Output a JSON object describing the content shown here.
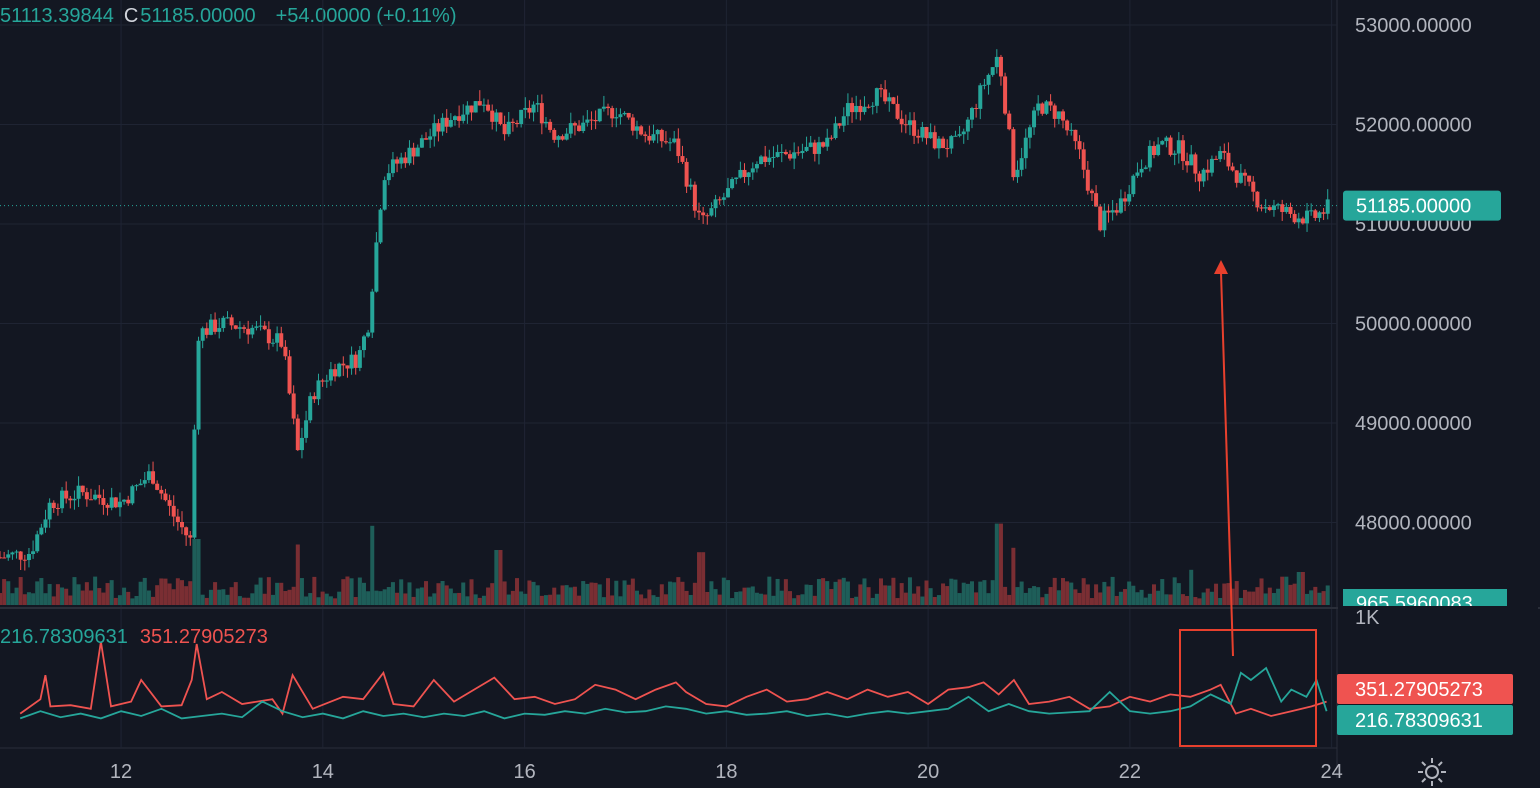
{
  "header": {
    "open_partial": "51113.39844",
    "close_prefix": "C",
    "close": "51185.00000",
    "change": "+54.00000 (+0.11%)"
  },
  "colors": {
    "background": "#131722",
    "up": "#26a69a",
    "down": "#ef5350",
    "grid": "#1f2433",
    "annotation": "#e8402d"
  },
  "chart_data": [
    {
      "type": "candlestick",
      "x_ticks": [
        "12",
        "14",
        "16",
        "18",
        "20",
        "22",
        "24"
      ],
      "y_ticks": [
        "53000.00000",
        "52000.00000",
        "51000.00000",
        "50000.00000",
        "49000.00000",
        "48000.00000"
      ],
      "ylim": [
        47200,
        53250
      ],
      "xlim": [
        10.8,
        24.4
      ],
      "last_price": "51185.00000",
      "price_path": [
        [
          10.8,
          47650
        ],
        [
          11.1,
          47700
        ],
        [
          11.3,
          48200
        ],
        [
          11.6,
          48300
        ],
        [
          12.0,
          48200
        ],
        [
          12.3,
          48500
        ],
        [
          12.5,
          48100
        ],
        [
          12.7,
          47800
        ],
        [
          12.75,
          49900
        ],
        [
          13.0,
          50000
        ],
        [
          13.3,
          49950
        ],
        [
          13.6,
          49800
        ],
        [
          13.75,
          48700
        ],
        [
          13.9,
          49300
        ],
        [
          14.1,
          49550
        ],
        [
          14.35,
          49650
        ],
        [
          14.45,
          50000
        ],
        [
          14.6,
          51500
        ],
        [
          14.9,
          51750
        ],
        [
          15.3,
          52100
        ],
        [
          15.6,
          52250
        ],
        [
          15.8,
          51900
        ],
        [
          16.1,
          52200
        ],
        [
          16.3,
          51900
        ],
        [
          16.6,
          52000
        ],
        [
          16.9,
          52150
        ],
        [
          17.2,
          51900
        ],
        [
          17.5,
          51800
        ],
        [
          17.75,
          51000
        ],
        [
          18.0,
          51300
        ],
        [
          18.3,
          51650
        ],
        [
          18.6,
          51700
        ],
        [
          19.0,
          51800
        ],
        [
          19.2,
          52150
        ],
        [
          19.5,
          52300
        ],
        [
          19.8,
          52000
        ],
        [
          20.1,
          51800
        ],
        [
          20.3,
          51800
        ],
        [
          20.55,
          52400
        ],
        [
          20.7,
          52700
        ],
        [
          20.85,
          51500
        ],
        [
          21.1,
          52200
        ],
        [
          21.3,
          52100
        ],
        [
          21.5,
          51700
        ],
        [
          21.7,
          51000
        ],
        [
          21.9,
          51200
        ],
        [
          22.1,
          51600
        ],
        [
          22.3,
          51800
        ],
        [
          22.5,
          51750
        ],
        [
          22.7,
          51500
        ],
        [
          22.9,
          51700
        ],
        [
          23.1,
          51450
        ],
        [
          23.3,
          51200
        ],
        [
          23.6,
          51100
        ],
        [
          23.8,
          51050
        ],
        [
          24.0,
          51185
        ]
      ],
      "candles": "intraday OHLC candles following price_path"
    },
    {
      "type": "bar",
      "name": "volume",
      "last_value": "965.5960083",
      "axis_label": "1K",
      "spikes": [
        [
          12.75,
          0.6
        ],
        [
          13.75,
          0.55
        ],
        [
          14.5,
          0.72
        ],
        [
          15.75,
          0.5
        ],
        [
          17.75,
          0.48
        ],
        [
          20.7,
          0.74
        ],
        [
          20.85,
          0.52
        ],
        [
          22.6,
          0.32
        ],
        [
          23.7,
          0.3
        ]
      ]
    },
    {
      "type": "line",
      "series": [
        {
          "value": "351.27905273",
          "color": "#ef5350",
          "ylim": [
            0,
            500
          ],
          "points": [
            [
              11.0,
              60
            ],
            [
              11.2,
              120
            ],
            [
              11.25,
              220
            ],
            [
              11.3,
              90
            ],
            [
              11.5,
              95
            ],
            [
              11.7,
              80
            ],
            [
              11.8,
              360
            ],
            [
              11.9,
              90
            ],
            [
              12.1,
              110
            ],
            [
              12.2,
              200
            ],
            [
              12.4,
              90
            ],
            [
              12.6,
              95
            ],
            [
              12.7,
              200
            ],
            [
              12.75,
              350
            ],
            [
              12.85,
              120
            ],
            [
              13.0,
              150
            ],
            [
              13.2,
              100
            ],
            [
              13.5,
              120
            ],
            [
              13.6,
              60
            ],
            [
              13.7,
              220
            ],
            [
              13.9,
              80
            ],
            [
              14.2,
              130
            ],
            [
              14.4,
              120
            ],
            [
              14.6,
              230
            ],
            [
              14.7,
              100
            ],
            [
              14.9,
              90
            ],
            [
              15.1,
              200
            ],
            [
              15.3,
              110
            ],
            [
              15.5,
              160
            ],
            [
              15.7,
              210
            ],
            [
              15.9,
              120
            ],
            [
              16.1,
              130
            ],
            [
              16.3,
              100
            ],
            [
              16.5,
              120
            ],
            [
              16.7,
              180
            ],
            [
              16.9,
              160
            ],
            [
              17.1,
              120
            ],
            [
              17.3,
              160
            ],
            [
              17.5,
              190
            ],
            [
              17.6,
              150
            ],
            [
              17.8,
              100
            ],
            [
              18.0,
              90
            ],
            [
              18.2,
              130
            ],
            [
              18.4,
              160
            ],
            [
              18.6,
              110
            ],
            [
              18.8,
              120
            ],
            [
              19.0,
              150
            ],
            [
              19.2,
              120
            ],
            [
              19.4,
              160
            ],
            [
              19.6,
              130
            ],
            [
              19.8,
              150
            ],
            [
              20.0,
              100
            ],
            [
              20.2,
              160
            ],
            [
              20.4,
              170
            ],
            [
              20.55,
              190
            ],
            [
              20.7,
              140
            ],
            [
              20.85,
              200
            ],
            [
              21.0,
              100
            ],
            [
              21.2,
              110
            ],
            [
              21.4,
              130
            ],
            [
              21.6,
              80
            ],
            [
              21.8,
              90
            ],
            [
              22.0,
              130
            ],
            [
              22.2,
              110
            ],
            [
              22.4,
              140
            ],
            [
              22.6,
              130
            ],
            [
              22.8,
              160
            ],
            [
              22.9,
              180
            ],
            [
              23.05,
              60
            ],
            [
              23.2,
              80
            ],
            [
              23.4,
              50
            ],
            [
              23.6,
              70
            ],
            [
              23.8,
              90
            ],
            [
              23.95,
              110
            ]
          ]
        },
        {
          "value": "216.78309631",
          "color": "#26a69a",
          "ylim": [
            0,
            500
          ],
          "points": [
            [
              11.0,
              40
            ],
            [
              11.2,
              70
            ],
            [
              11.4,
              45
            ],
            [
              11.6,
              60
            ],
            [
              11.8,
              40
            ],
            [
              12.0,
              70
            ],
            [
              12.2,
              50
            ],
            [
              12.4,
              80
            ],
            [
              12.6,
              40
            ],
            [
              12.8,
              50
            ],
            [
              13.0,
              60
            ],
            [
              13.2,
              45
            ],
            [
              13.4,
              110
            ],
            [
              13.6,
              70
            ],
            [
              13.8,
              45
            ],
            [
              14.0,
              60
            ],
            [
              14.2,
              40
            ],
            [
              14.4,
              70
            ],
            [
              14.6,
              50
            ],
            [
              14.8,
              60
            ],
            [
              15.0,
              45
            ],
            [
              15.2,
              60
            ],
            [
              15.4,
              50
            ],
            [
              15.6,
              70
            ],
            [
              15.8,
              40
            ],
            [
              16.0,
              60
            ],
            [
              16.2,
              55
            ],
            [
              16.4,
              70
            ],
            [
              16.6,
              60
            ],
            [
              16.8,
              80
            ],
            [
              17.0,
              65
            ],
            [
              17.2,
              70
            ],
            [
              17.4,
              90
            ],
            [
              17.6,
              80
            ],
            [
              17.8,
              60
            ],
            [
              18.0,
              70
            ],
            [
              18.2,
              55
            ],
            [
              18.4,
              60
            ],
            [
              18.6,
              70
            ],
            [
              18.8,
              50
            ],
            [
              19.0,
              60
            ],
            [
              19.2,
              45
            ],
            [
              19.4,
              60
            ],
            [
              19.6,
              70
            ],
            [
              19.8,
              60
            ],
            [
              20.0,
              70
            ],
            [
              20.2,
              80
            ],
            [
              20.4,
              130
            ],
            [
              20.6,
              70
            ],
            [
              20.8,
              100
            ],
            [
              21.0,
              70
            ],
            [
              21.2,
              60
            ],
            [
              21.4,
              65
            ],
            [
              21.6,
              70
            ],
            [
              21.8,
              150
            ],
            [
              22.0,
              70
            ],
            [
              22.2,
              60
            ],
            [
              22.4,
              70
            ],
            [
              22.6,
              90
            ],
            [
              22.8,
              140
            ],
            [
              23.0,
              100
            ],
            [
              23.1,
              230
            ],
            [
              23.2,
              200
            ],
            [
              23.35,
              250
            ],
            [
              23.5,
              110
            ],
            [
              23.6,
              160
            ],
            [
              23.75,
              130
            ],
            [
              23.85,
              200
            ],
            [
              23.95,
              70
            ]
          ]
        }
      ]
    }
  ]
}
